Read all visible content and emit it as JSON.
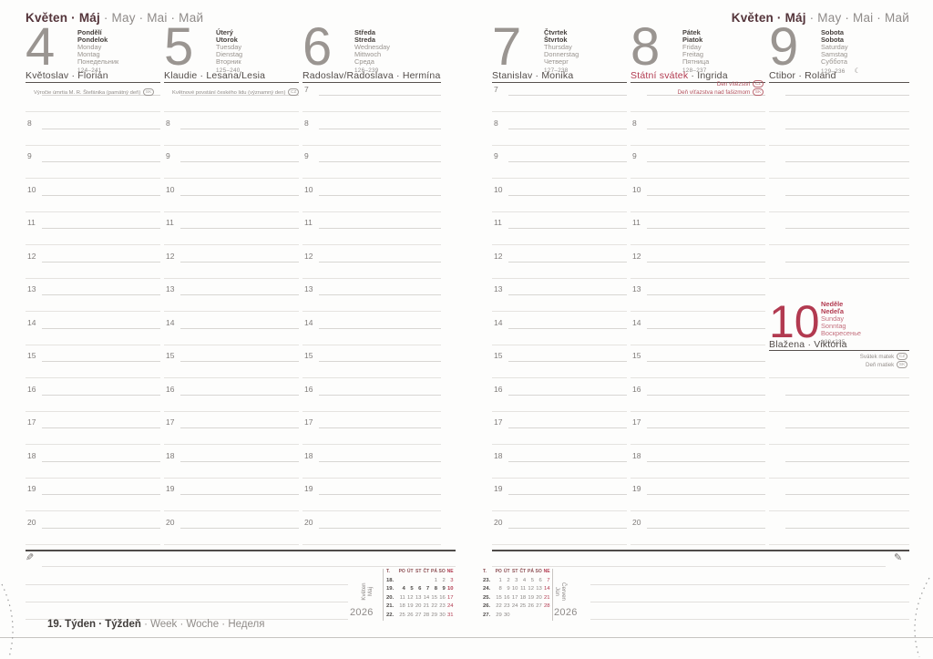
{
  "month_header": {
    "czech": "Květen",
    "sep": " · ",
    "slovak": "Máj",
    "rest": " · May · Mai · Май"
  },
  "icons": {
    "pencil": "✎"
  },
  "days": [
    {
      "number": "4",
      "bold": [
        "Pondělí",
        "Pondelok"
      ],
      "intl": [
        "Monday",
        "Montag",
        "Понедельник"
      ],
      "range": "124–241",
      "nameday": [
        {
          "t": "Květoslav · Florián"
        }
      ]
    },
    {
      "number": "5",
      "bold": [
        "Úterý",
        "Utorok"
      ],
      "intl": [
        "Tuesday",
        "Dienstag",
        "Вторник"
      ],
      "range": "125–240",
      "nameday": [
        {
          "t": "Klaudie · Lesana/Lesia"
        }
      ]
    },
    {
      "number": "6",
      "bold": [
        "Středa",
        "Streda"
      ],
      "intl": [
        "Wednesday",
        "Mittwoch",
        "Среда"
      ],
      "range": "126–239",
      "nameday": [
        {
          "t": "Radoslav/Radoslava · Hermína"
        }
      ]
    },
    {
      "number": "7",
      "bold": [
        "Čtvrtek",
        "Štvrtok"
      ],
      "intl": [
        "Thursday",
        "Donnerstag",
        "Четверг"
      ],
      "range": "127–238",
      "nameday": [
        {
          "t": "Stanislav · Monika"
        }
      ]
    },
    {
      "number": "8",
      "bold": [
        "Pátek",
        "Piatok"
      ],
      "intl": [
        "Friday",
        "Freitag",
        "Пятница"
      ],
      "range": "128–237",
      "nameday": [
        {
          "t": "Státní svátek",
          "red": true
        },
        {
          "t": " · Ingrida"
        }
      ]
    },
    {
      "number": "9",
      "bold": [
        "Sobota",
        "Sobota"
      ],
      "intl": [
        "Saturday",
        "Samstag",
        "Суббота"
      ],
      "range": "129–236",
      "moon": "☾",
      "nameday": [
        {
          "t": "Ctibor · Roland"
        }
      ]
    },
    {
      "number": "10",
      "bold": [
        "Neděle",
        "Nedeľa"
      ],
      "intl": [
        "Sunday",
        "Sonntag",
        "Воскресенье"
      ],
      "range": "130–235",
      "sunday": true,
      "nameday": [
        {
          "t": "Blažena · Viktória"
        }
      ],
      "notes": [
        {
          "text": "Svátek matek",
          "tag": "CZ"
        },
        {
          "text": "Deň matiek",
          "tag": "SK"
        }
      ]
    }
  ],
  "columns": [
    {
      "day": 0,
      "hours": [
        "",
        "8",
        "9",
        "10",
        "11",
        "12",
        "13",
        "14",
        "15",
        "16",
        "17",
        "18",
        "19",
        "20"
      ],
      "top_note": {
        "text": "Výročie úmrtia M. R. Štefánika (pamätný deň)",
        "tag": "SK"
      }
    },
    {
      "day": 1,
      "hours": [
        "",
        "8",
        "9",
        "10",
        "11",
        "12",
        "13",
        "14",
        "15",
        "16",
        "17",
        "18",
        "19",
        "20"
      ],
      "top_note": {
        "text": "Květnové povstání českého lidu (významný den)",
        "tag": "CZ"
      }
    },
    {
      "day": 2,
      "hours": [
        "7",
        "8",
        "9",
        "10",
        "11",
        "12",
        "13",
        "14",
        "15",
        "16",
        "17",
        "18",
        "19",
        "20"
      ]
    },
    {
      "day": 3,
      "hours": [
        "7",
        "8",
        "9",
        "10",
        "11",
        "12",
        "13",
        "14",
        "15",
        "16",
        "17",
        "18",
        "19",
        "20"
      ]
    },
    {
      "day": 4,
      "hours": [
        "",
        "8",
        "9",
        "10",
        "11",
        "12",
        "13",
        "14",
        "15",
        "16",
        "17",
        "18",
        "19",
        "20"
      ],
      "red_notes": [
        {
          "text": "Den vítězství",
          "tag": "CZ"
        },
        {
          "text": "Deň víťazstva nad fašizmom",
          "tag": "SK"
        }
      ]
    },
    {
      "day": 5,
      "hours": [
        "",
        "",
        "",
        "",
        "",
        "",
        "",
        "",
        "",
        "",
        "",
        "",
        "",
        ""
      ],
      "sunday_day": 6
    }
  ],
  "week_footer": {
    "bold": "19. Týden · Týždeň",
    "rest": " · Week · Woche · Неделя"
  },
  "mini_calendars": [
    {
      "label": [
        "Květen",
        "Máj"
      ],
      "year": "2026",
      "header": [
        "T.",
        "PO",
        "ÚT",
        "ST",
        "ČT",
        "PÁ",
        "SO",
        "NE"
      ],
      "rows": [
        {
          "wk": "18.",
          "days": [
            "",
            "",
            "",
            "",
            "1",
            "2",
            "3"
          ]
        },
        {
          "wk": "19.",
          "days": [
            "4",
            "5",
            "6",
            "7",
            "8",
            "9",
            "10"
          ],
          "current": true
        },
        {
          "wk": "20.",
          "days": [
            "11",
            "12",
            "13",
            "14",
            "15",
            "16",
            "17"
          ]
        },
        {
          "wk": "21.",
          "days": [
            "18",
            "19",
            "20",
            "21",
            "22",
            "23",
            "24"
          ]
        },
        {
          "wk": "22.",
          "days": [
            "25",
            "26",
            "27",
            "28",
            "29",
            "30",
            "31"
          ]
        }
      ]
    },
    {
      "label": [
        "Červen",
        "Jún"
      ],
      "year": "2026",
      "header": [
        "T.",
        "PO",
        "ÚT",
        "ST",
        "ČT",
        "PÁ",
        "SO",
        "NE"
      ],
      "rows": [
        {
          "wk": "23.",
          "days": [
            "1",
            "2",
            "3",
            "4",
            "5",
            "6",
            "7"
          ]
        },
        {
          "wk": "24.",
          "days": [
            "8",
            "9",
            "10",
            "11",
            "12",
            "13",
            "14"
          ]
        },
        {
          "wk": "25.",
          "days": [
            "15",
            "16",
            "17",
            "18",
            "19",
            "20",
            "21"
          ]
        },
        {
          "wk": "26.",
          "days": [
            "22",
            "23",
            "24",
            "25",
            "26",
            "27",
            "28"
          ]
        },
        {
          "wk": "27.",
          "days": [
            "29",
            "30",
            "",
            "",
            "",
            "",
            ""
          ]
        }
      ]
    }
  ],
  "colors": {
    "accent_red": "#b23a50",
    "month_maroon": "#54343a",
    "ink": "#46403d",
    "gray": "#8f8b89"
  }
}
